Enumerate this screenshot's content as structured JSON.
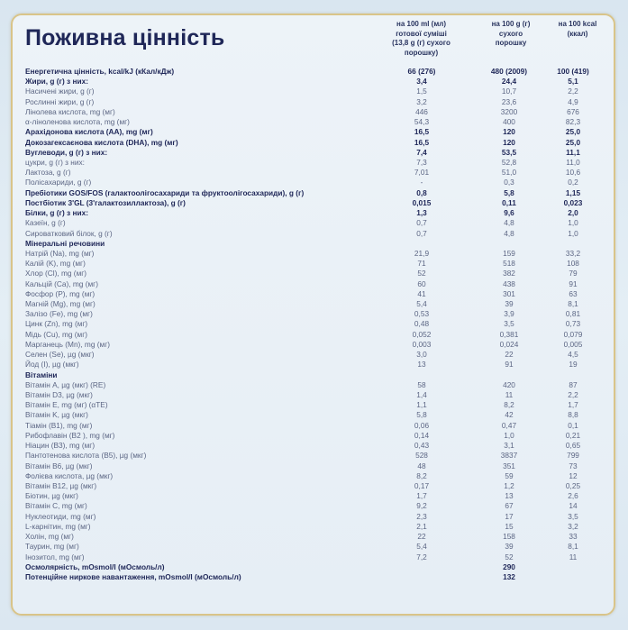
{
  "title": "Поживна цінність",
  "columns": [
    "на 100 ml (мл)\nготової суміші\n(13,8 g (г) сухого\nпорошку)",
    "на 100 g (г)\nсухого\nпорошку",
    "на 100 kcal\n(ккал)"
  ],
  "rows": [
    {
      "label": "Енергетична цінність, kcal/kJ (кКал/кДж)",
      "v": [
        "66 (276)",
        "480 (2009)",
        "100 (419)"
      ],
      "style": "b"
    },
    {
      "label": "Жири, g (г) з них:",
      "v": [
        "3,4",
        "24,4",
        "5,1"
      ],
      "style": "b"
    },
    {
      "label": "Насичені жири, g (г)",
      "v": [
        "1,5",
        "10,7",
        "2,2"
      ]
    },
    {
      "label": "Рослинні жири, g (г)",
      "v": [
        "3,2",
        "23,6",
        "4,9"
      ]
    },
    {
      "label": "Лінолева кислота, mg (мг)",
      "v": [
        "446",
        "3200",
        "676"
      ]
    },
    {
      "label": "α-ліноленова кислота, mg (мг)",
      "v": [
        "54,3",
        "400",
        "82,3"
      ]
    },
    {
      "label": "Арахідонова кислота (AA), mg (мг)",
      "v": [
        "16,5",
        "120",
        "25,0"
      ],
      "style": "b"
    },
    {
      "label": "Докозагексаєнова кислота (DHA), mg (мг)",
      "v": [
        "16,5",
        "120",
        "25,0"
      ],
      "style": "b"
    },
    {
      "label": "Вуглеводи, g (г) з них:",
      "v": [
        "7,4",
        "53,5",
        "11,1"
      ],
      "style": "b"
    },
    {
      "label": "цукри, g (г) з них:",
      "v": [
        "7,3",
        "52,8",
        "11,0"
      ]
    },
    {
      "label": "Лактоза, g (г)",
      "v": [
        "7,01",
        "51,0",
        "10,6"
      ]
    },
    {
      "label": "Полісахариди, g (г)",
      "v": [
        "-",
        "0,3",
        "0,2"
      ]
    },
    {
      "label": "Пребіотики GOS/FOS (галактоолігосахариди та фруктоолігосахариди), g (г)",
      "v": [
        "0,8",
        "5,8",
        "1,15"
      ],
      "style": "b"
    },
    {
      "label": "Постбіотик 3'GL (3'галактозиллактоза), g (г)",
      "v": [
        "0,015",
        "0,11",
        "0,023"
      ],
      "style": "b"
    },
    {
      "label": "Білки, g (г) з них:",
      "v": [
        "1,3",
        "9,6",
        "2,0"
      ],
      "style": "b"
    },
    {
      "label": "Казеїн, g (г)",
      "v": [
        "0,7",
        "4,8",
        "1,0"
      ]
    },
    {
      "label": "Сироватковий білок, g (г)",
      "v": [
        "0,7",
        "4,8",
        "1,0"
      ]
    },
    {
      "label": "Мінеральні речовини",
      "v": [
        "",
        "",
        ""
      ],
      "style": "s"
    },
    {
      "label": "Натрій (Na), mg (мг)",
      "v": [
        "21,9",
        "159",
        "33,2"
      ]
    },
    {
      "label": "Калій (K), mg (мг)",
      "v": [
        "71",
        "518",
        "108"
      ]
    },
    {
      "label": "Хлор (Cl), mg (мг)",
      "v": [
        "52",
        "382",
        "79"
      ]
    },
    {
      "label": "Кальцій (Ca), mg (мг)",
      "v": [
        "60",
        "438",
        "91"
      ]
    },
    {
      "label": "Фосфор (P), mg (мг)",
      "v": [
        "41",
        "301",
        "63"
      ]
    },
    {
      "label": "Магній (Mg), mg (мг)",
      "v": [
        "5,4",
        "39",
        "8,1"
      ]
    },
    {
      "label": "Залізо (Fe), mg (мг)",
      "v": [
        "0,53",
        "3,9",
        "0,81"
      ]
    },
    {
      "label": "Цинк (Zn), mg (мг)",
      "v": [
        "0,48",
        "3,5",
        "0,73"
      ]
    },
    {
      "label": "Мідь (Cu), mg (мг)",
      "v": [
        "0,052",
        "0,381",
        "0,079"
      ]
    },
    {
      "label": "Марганець (Mn), mg (мг)",
      "v": [
        "0,003",
        "0,024",
        "0,005"
      ]
    },
    {
      "label": "Селен (Se), µg  (мкг)",
      "v": [
        "3,0",
        "22",
        "4,5"
      ]
    },
    {
      "label": "Йод (I), µg (мкг)",
      "v": [
        "13",
        "91",
        "19"
      ]
    },
    {
      "label": "Вітаміни",
      "v": [
        "",
        "",
        ""
      ],
      "style": "s"
    },
    {
      "label": "Вітамін A, µg (мкг) (RE)",
      "v": [
        "58",
        "420",
        "87"
      ]
    },
    {
      "label": "Вітамін D3, µg  (мкг)",
      "v": [
        "1,4",
        "11",
        "2,2"
      ]
    },
    {
      "label": "Вітамін E, mg (мг) (αTE)",
      "v": [
        "1,1",
        "8,2",
        "1,7"
      ]
    },
    {
      "label": "Вітамін K, µg (мкг)",
      "v": [
        "5,8",
        "42",
        "8,8"
      ]
    },
    {
      "label": "Тіамін (B1), mg (мг)",
      "v": [
        "0,06",
        "0,47",
        "0,1"
      ]
    },
    {
      "label": "Рибофлавін (B2 ), mg (мг)",
      "v": [
        "0,14",
        "1,0",
        "0,21"
      ]
    },
    {
      "label": "Ніацин (B3), mg (мг)",
      "v": [
        "0,43",
        "3,1",
        "0,65"
      ]
    },
    {
      "label": "Пантотенова кислота (B5), µg (мкг)",
      "v": [
        "528",
        "3837",
        "799"
      ]
    },
    {
      "label": "Вітамін B6, µg (мкг)",
      "v": [
        "48",
        "351",
        "73"
      ]
    },
    {
      "label": "Фолієва кислота, µg (мкг)",
      "v": [
        "8,2",
        "59",
        "12"
      ]
    },
    {
      "label": "Вітамін B12, µg (мкг)",
      "v": [
        "0,17",
        "1,2",
        "0,25"
      ]
    },
    {
      "label": "Біотин, µg (мкг)",
      "v": [
        "1,7",
        "13",
        "2,6"
      ]
    },
    {
      "label": "Вітамін C, mg (мг)",
      "v": [
        "9,2",
        "67",
        "14"
      ]
    },
    {
      "label": "Нуклеотиди, mg (мг)",
      "v": [
        "2,3",
        "17",
        "3,5"
      ]
    },
    {
      "label": "L-карнітин, mg (мг)",
      "v": [
        "2,1",
        "15",
        "3,2"
      ]
    },
    {
      "label": "Холін, mg (мг)",
      "v": [
        "22",
        "158",
        "33"
      ]
    },
    {
      "label": "Таурин, mg (мг)",
      "v": [
        "5,4",
        "39",
        "8,1"
      ]
    },
    {
      "label": "Інозитол, mg (мг)",
      "v": [
        "7,2",
        "52",
        "11"
      ]
    },
    {
      "label": "Осмолярність, mOsmol/l (мОсмоль/л)",
      "v": [
        "",
        "290",
        ""
      ],
      "style": "b"
    },
    {
      "label": "Потенційне ниркове навантаження, mOsmol/l (мОсмоль/л)",
      "v": [
        "",
        "132",
        ""
      ],
      "style": "b"
    }
  ]
}
